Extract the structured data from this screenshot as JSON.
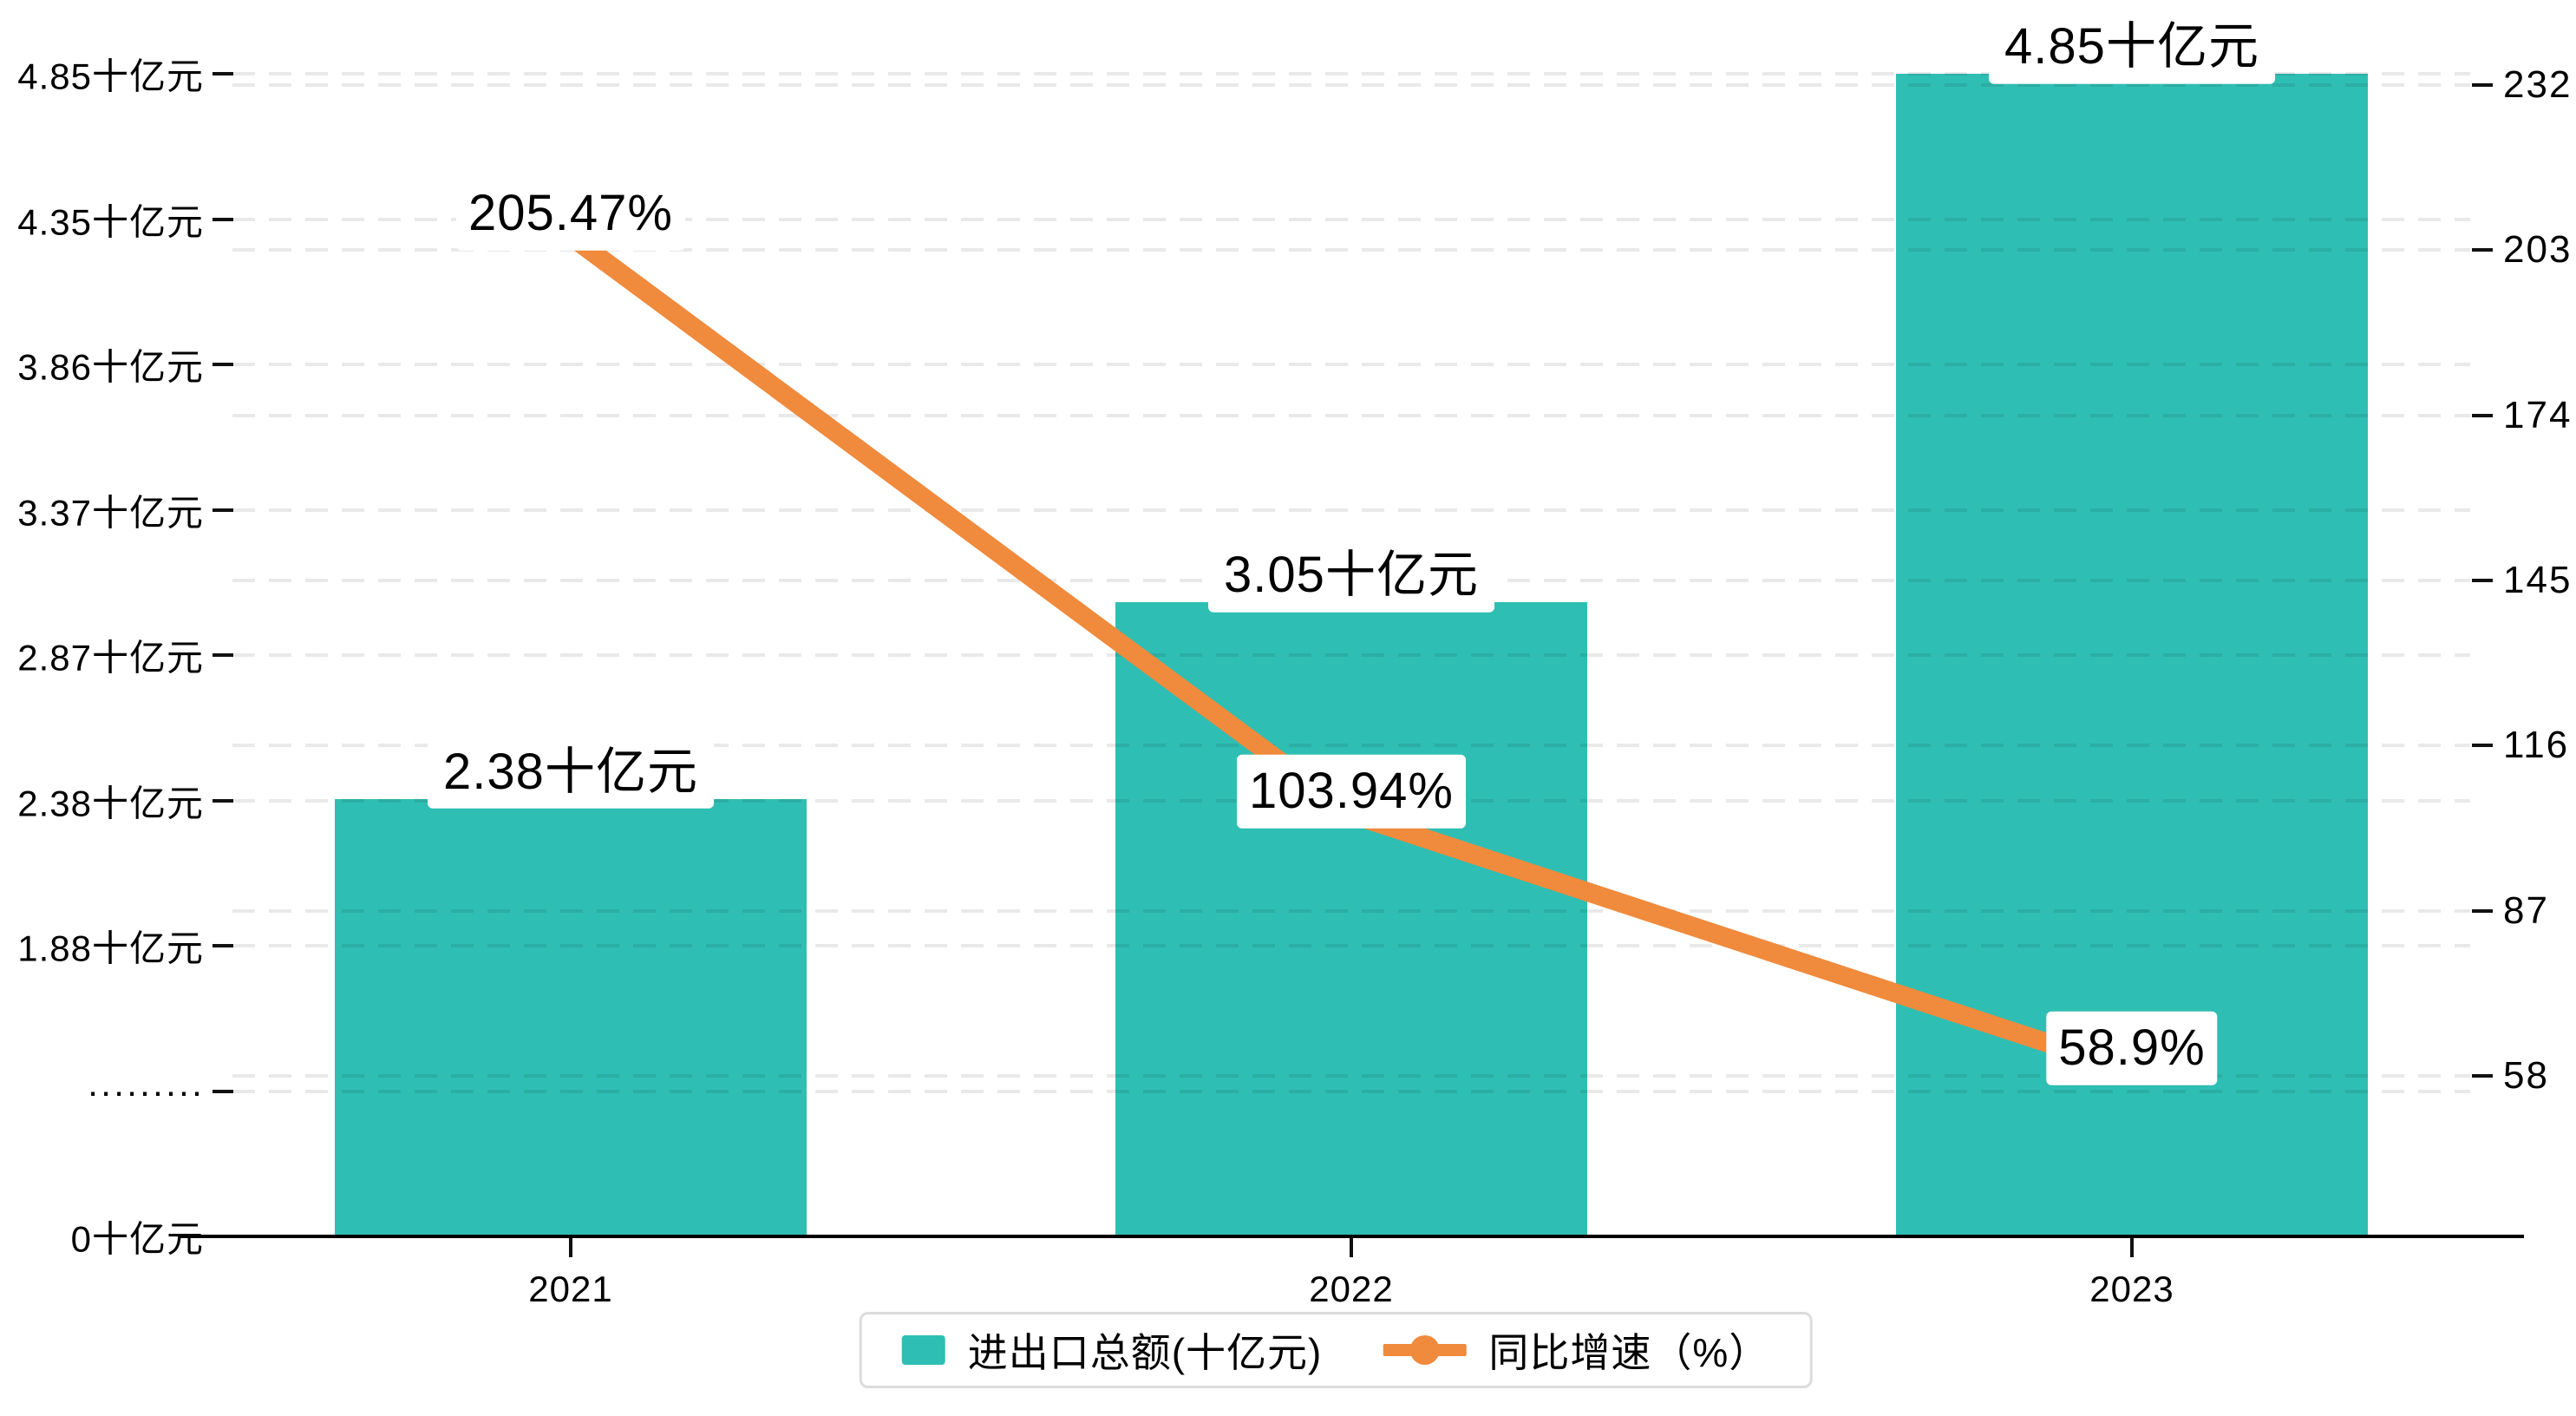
{
  "chart_data": {
    "type": "combo-bar-line",
    "title": "",
    "categories": [
      "2021",
      "2022",
      "2023"
    ],
    "series": [
      {
        "name": "进出口总额(十亿元)",
        "type": "bar",
        "values": [
          2.38,
          3.05,
          4.85
        ],
        "labels": [
          "2.38十亿元",
          "3.05十亿元",
          "4.85十亿元"
        ],
        "color": "#2FBEB3"
      },
      {
        "name": "同比增速（%）",
        "type": "line",
        "values": [
          205.47,
          103.94,
          58.9
        ],
        "labels": [
          "205.47%",
          "103.94%",
          "58.9%"
        ],
        "color": "#F08A3C"
      }
    ],
    "left_axis": {
      "ticks": [
        "0十亿元",
        "·········",
        "1.88十亿元",
        "2.38十亿元",
        "2.87十亿元",
        "3.37十亿元",
        "3.86十亿元",
        "4.35十亿元",
        "4.85十亿元"
      ],
      "note": "axis break between 0 and 1.88, broken segment shown as dots"
    },
    "right_axis": {
      "ticks": [
        232,
        203,
        174,
        145,
        116,
        87,
        58
      ]
    },
    "legend_position": "bottom",
    "grid": true,
    "gridline_style": "dashed",
    "background": "#ffffff",
    "text_color": "#000000"
  }
}
